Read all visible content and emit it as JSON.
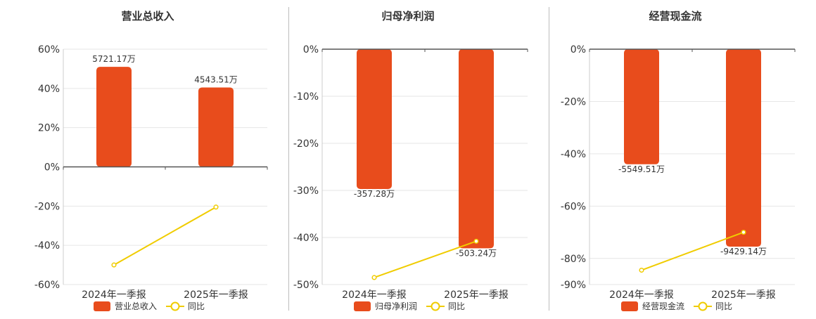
{
  "colors": {
    "bar": "#e84c1c",
    "line": "#f0cc00",
    "grid": "#e6e6e6",
    "axis": "#555555",
    "text": "#333333"
  },
  "charts": [
    {
      "title": "营业总收入",
      "legend": {
        "bar": "营业总收入",
        "line": "同比"
      }
    },
    {
      "title": "归母净利润",
      "legend": {
        "bar": "归母净利润",
        "line": "同比"
      }
    },
    {
      "title": "经营现金流",
      "legend": {
        "bar": "经营现金流",
        "line": "同比"
      }
    }
  ],
  "chart_data": [
    {
      "type": "bar",
      "title": "营业总收入",
      "categories": [
        "2024年一季报",
        "2025年一季报"
      ],
      "y_axis": {
        "min": -60,
        "max": 60,
        "ticks": [
          60,
          40,
          20,
          0,
          -20,
          -40,
          -60
        ],
        "tick_labels": [
          "60%",
          "40%",
          "20%",
          "0%",
          "-20%",
          "-40%",
          "-60%"
        ]
      },
      "series": [
        {
          "name": "营业总收入",
          "type": "bar",
          "values": [
            51,
            40.5
          ],
          "labels": [
            "5721.17万",
            "4543.51万"
          ]
        },
        {
          "name": "同比",
          "type": "line",
          "values": [
            -50,
            -20.5
          ]
        }
      ],
      "grid": true,
      "legend_position": "bottom"
    },
    {
      "type": "bar",
      "title": "归母净利润",
      "categories": [
        "2024年一季报",
        "2025年一季报"
      ],
      "y_axis": {
        "min": -50,
        "max": 0,
        "ticks": [
          0,
          -10,
          -20,
          -30,
          -40,
          -50
        ],
        "tick_labels": [
          "0%",
          "-10%",
          "-20%",
          "-30%",
          "-40%",
          "-50%"
        ]
      },
      "series": [
        {
          "name": "归母净利润",
          "type": "bar",
          "values": [
            -29.7,
            -42.3
          ],
          "labels": [
            "-357.28万",
            "-503.24万"
          ]
        },
        {
          "name": "同比",
          "type": "line",
          "values": [
            -48.5,
            -40.8
          ]
        }
      ],
      "grid": true,
      "legend_position": "bottom"
    },
    {
      "type": "bar",
      "title": "经营现金流",
      "categories": [
        "2024年一季报",
        "2025年一季报"
      ],
      "y_axis": {
        "min": -90,
        "max": 0,
        "ticks": [
          0,
          -20,
          -40,
          -60,
          -80,
          -90
        ],
        "tick_labels": [
          "0%",
          "-20%",
          "-40%",
          "-60%",
          "-80%",
          "-90%"
        ]
      },
      "series": [
        {
          "name": "经营现金流",
          "type": "bar",
          "values": [
            -44,
            -75.5
          ],
          "labels": [
            "-5549.51万",
            "-9429.14万"
          ]
        },
        {
          "name": "同比",
          "type": "line",
          "values": [
            -84.5,
            -70
          ]
        }
      ],
      "grid": true,
      "legend_position": "bottom"
    }
  ]
}
